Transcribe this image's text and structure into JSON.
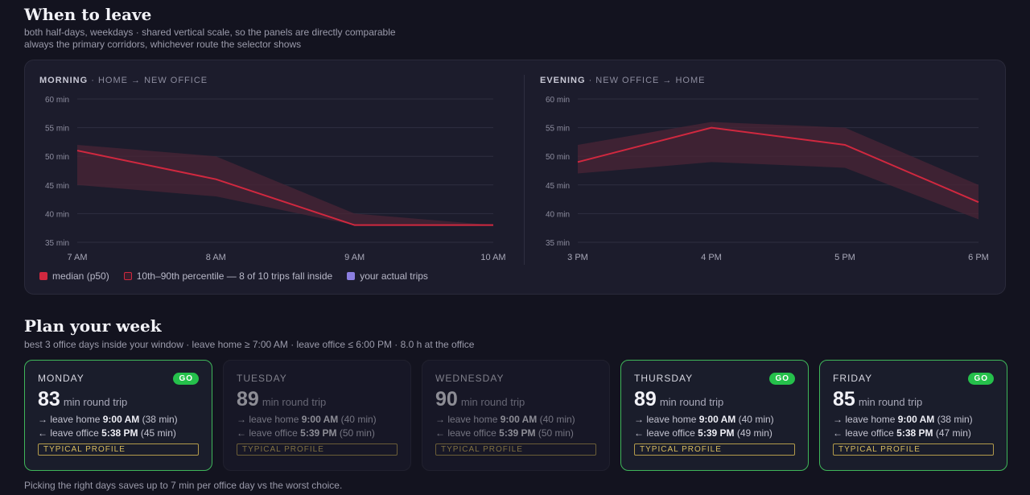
{
  "header": {
    "title": "When to leave",
    "subtitle1": "both half-days, weekdays · shared vertical scale, so the panels are directly comparable",
    "subtitle2": "always the primary corridors, whichever route the selector shows"
  },
  "chart_data": [
    {
      "type": "line",
      "panel": "MORNING",
      "route": "· HOME → NEW OFFICE",
      "x": [
        "7 AM",
        "8 AM",
        "9 AM",
        "10 AM"
      ],
      "ylim": [
        35,
        60
      ],
      "y_ticks": [
        "35 min",
        "40 min",
        "45 min",
        "50 min",
        "55 min",
        "60 min"
      ],
      "grid": true,
      "series": [
        {
          "name": "median (p50)",
          "values": [
            51,
            46,
            38,
            38
          ]
        },
        {
          "name": "10th–90th percentile — 8 of 10 trips fall inside",
          "low": [
            45,
            43,
            38,
            38
          ],
          "high": [
            52,
            50,
            40,
            38
          ]
        }
      ]
    },
    {
      "type": "line",
      "panel": "EVENING",
      "route": "· NEW OFFICE → HOME",
      "x": [
        "3 PM",
        "4 PM",
        "5 PM",
        "6 PM"
      ],
      "ylim": [
        35,
        60
      ],
      "y_ticks": [
        "35 min",
        "40 min",
        "45 min",
        "50 min",
        "55 min",
        "60 min"
      ],
      "grid": true,
      "series": [
        {
          "name": "median (p50)",
          "values": [
            49,
            55,
            52,
            42
          ]
        },
        {
          "name": "10th–90th percentile — 8 of 10 trips fall inside",
          "low": [
            47,
            49,
            48,
            39
          ],
          "high": [
            52,
            56,
            55,
            45
          ]
        }
      ]
    }
  ],
  "legend": {
    "median": "median (p50)",
    "band": "10th–90th percentile — 8 of 10 trips fall inside",
    "trips": "your actual trips",
    "colors": {
      "median": "#d0283f",
      "band": "#4a2436",
      "trips": "#8b7ee0"
    }
  },
  "week": {
    "title": "Plan your week",
    "subtitle": "best 3 office days inside your window · leave home ≥ 7:00 AM · leave office ≤ 6:00 PM · 8.0 h at the office",
    "days": [
      {
        "name": "MONDAY",
        "badge": "GO",
        "total": "83",
        "unit": "min round trip",
        "home_prefix": "→ leave home",
        "home_time": "9:00 AM",
        "home_dur": "(38 min)",
        "office_prefix": "← leave office",
        "office_time": "5:38 PM",
        "office_dur": "(45 min)",
        "profile": "TYPICAL PROFILE"
      },
      {
        "name": "TUESDAY",
        "badge": "",
        "total": "89",
        "unit": "min round trip",
        "home_prefix": "→ leave home",
        "home_time": "9:00 AM",
        "home_dur": "(40 min)",
        "office_prefix": "← leave office",
        "office_time": "5:39 PM",
        "office_dur": "(50 min)",
        "profile": "TYPICAL PROFILE"
      },
      {
        "name": "WEDNESDAY",
        "badge": "",
        "total": "90",
        "unit": "min round trip",
        "home_prefix": "→ leave home",
        "home_time": "9:00 AM",
        "home_dur": "(40 min)",
        "office_prefix": "← leave office",
        "office_time": "5:39 PM",
        "office_dur": "(50 min)",
        "profile": "TYPICAL PROFILE"
      },
      {
        "name": "THURSDAY",
        "badge": "GO",
        "total": "89",
        "unit": "min round trip",
        "home_prefix": "→ leave home",
        "home_time": "9:00 AM",
        "home_dur": "(40 min)",
        "office_prefix": "← leave office",
        "office_time": "5:39 PM",
        "office_dur": "(49 min)",
        "profile": "TYPICAL PROFILE"
      },
      {
        "name": "FRIDAY",
        "badge": "GO",
        "total": "85",
        "unit": "min round trip",
        "home_prefix": "→ leave home",
        "home_time": "9:00 AM",
        "home_dur": "(38 min)",
        "office_prefix": "← leave office",
        "office_time": "5:38 PM",
        "office_dur": "(47 min)",
        "profile": "TYPICAL PROFILE"
      }
    ]
  },
  "footer": "Picking the right days saves up to 7 min per office day vs the worst choice."
}
